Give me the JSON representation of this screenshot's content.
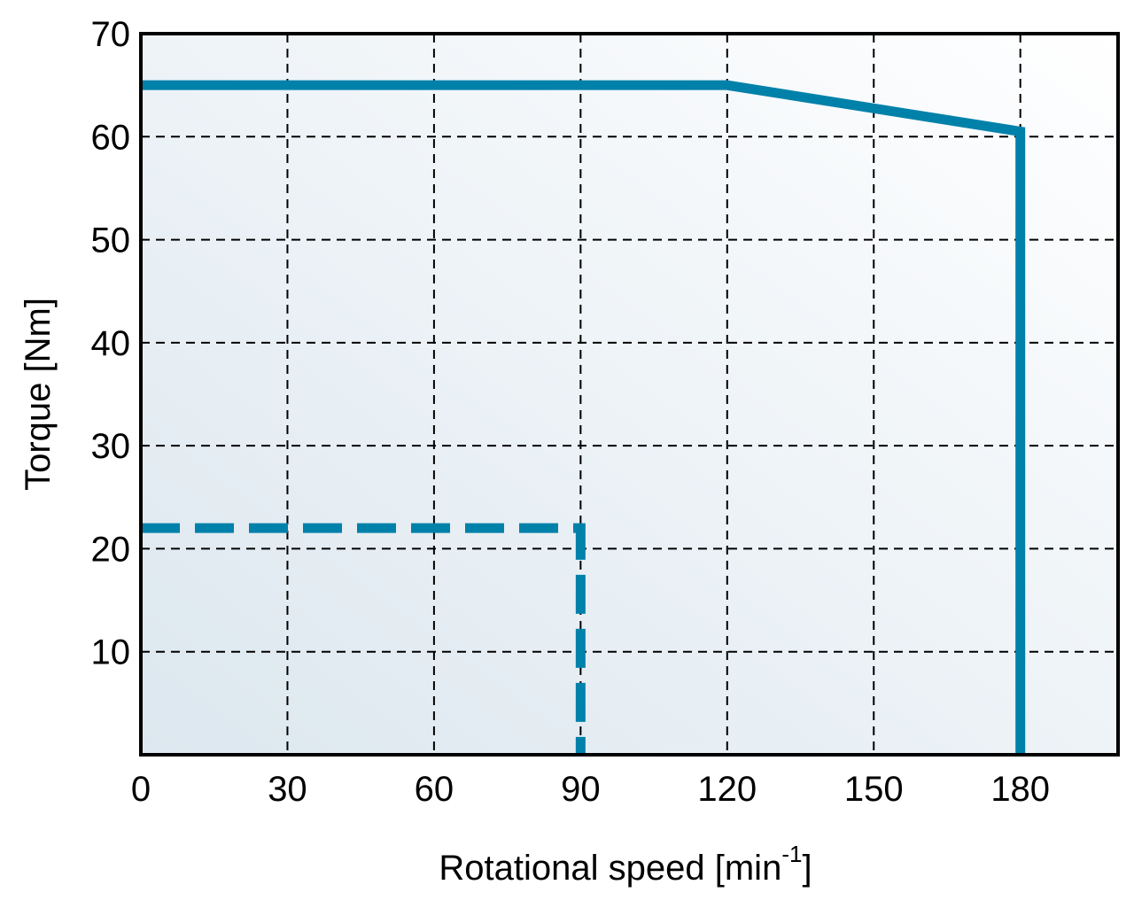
{
  "chart_data": {
    "type": "line",
    "title": "",
    "xlabel": {
      "text": "Rotational speed [min",
      "superscript": "-1",
      "suffix": "]"
    },
    "ylabel": "Torque [Nm]",
    "xlim": [
      0,
      200
    ],
    "ylim": [
      0,
      70
    ],
    "xticks": [
      0,
      30,
      60,
      90,
      120,
      150,
      180
    ],
    "yticks": [
      10,
      20,
      30,
      40,
      50,
      60,
      70
    ],
    "grid": true,
    "grid_style": "dashed",
    "series": [
      {
        "style": "solid",
        "color": "#0081aa",
        "points": [
          [
            0,
            65
          ],
          [
            120,
            65
          ],
          [
            180,
            60.5
          ],
          [
            180,
            0
          ]
        ]
      },
      {
        "style": "dashed",
        "color": "#0081aa",
        "points": [
          [
            0,
            22
          ],
          [
            90,
            22
          ],
          [
            90,
            0
          ]
        ]
      }
    ],
    "colors": {
      "series": "#0081aa",
      "frame": "#000000",
      "grid": "#000000",
      "background_light": "#ffffff",
      "background_dark": "#dce7ef"
    }
  }
}
